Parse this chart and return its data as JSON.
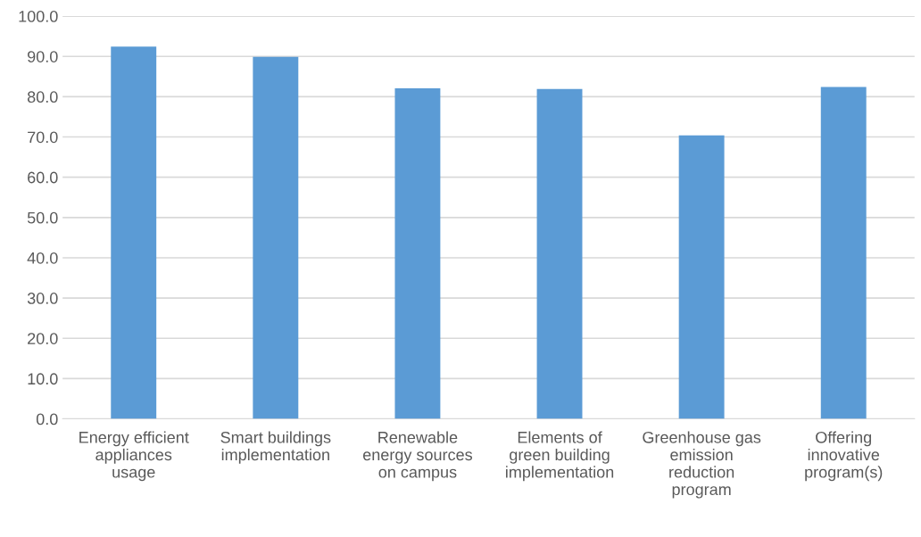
{
  "chart_data": {
    "type": "bar",
    "categories": [
      "Energy efficient\nappliances\nusage",
      "Smart buildings\nimplementation",
      "Renewable\nenergy sources\non campus",
      "Elements of\ngreen building\nimplementation",
      "Greenhouse gas\nemission\nreduction\nprogram",
      "Offering\ninnovative\nprogram(s)"
    ],
    "values": [
      92.4,
      89.9,
      82.1,
      81.9,
      70.4,
      82.4
    ],
    "color": "#5b9bd5",
    "ylim": [
      0,
      100
    ],
    "yticks": [
      {
        "value": 0,
        "label": "0.0"
      },
      {
        "value": 10,
        "label": "10.0"
      },
      {
        "value": 20,
        "label": "20.0"
      },
      {
        "value": 30,
        "label": "30.0"
      },
      {
        "value": 40,
        "label": "40.0"
      },
      {
        "value": 50,
        "label": "50.0"
      },
      {
        "value": 60,
        "label": "60.0"
      },
      {
        "value": 70,
        "label": "70.0"
      },
      {
        "value": 80,
        "label": "80.0"
      },
      {
        "value": 90,
        "label": "90.0"
      },
      {
        "value": 100,
        "label": "100.0"
      }
    ],
    "grid": "y"
  }
}
